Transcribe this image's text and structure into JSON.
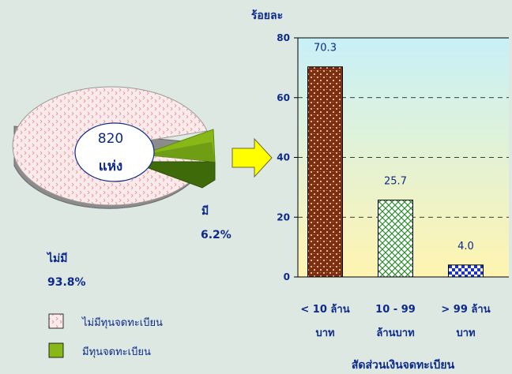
{
  "chart_data": [
    {
      "type": "pie",
      "center_text": [
        "820",
        "แห่ง"
      ],
      "slices": [
        {
          "label": "ไม่มี",
          "value": 93.8,
          "value_text": "93.8%",
          "color": "#f7e3e3"
        },
        {
          "label": "มี",
          "value": 6.2,
          "value_text": "6.2%",
          "color": "#88b818"
        }
      ],
      "legend": [
        {
          "label": "ไม่มีทุนจดทะเบียน",
          "swatch": "pink-dotted"
        },
        {
          "label": "มีทุนจดทะเบียน",
          "swatch": "green"
        }
      ],
      "legend_position": "bottom-left",
      "style": "3d-exploded"
    },
    {
      "type": "bar",
      "ylabel": "ร้อยละ",
      "title": "สัดส่วนเงินจดทะเบียน",
      "categories": [
        [
          "< 10 ล้าน",
          "บาท"
        ],
        [
          "10 - 99",
          "ล้านบาท"
        ],
        [
          "> 99 ล้าน",
          "บาท"
        ]
      ],
      "values": [
        70.3,
        25.7,
        4.0
      ],
      "value_labels": [
        "70.3",
        "25.7",
        "4.0"
      ],
      "ylim": [
        0,
        80
      ],
      "yticks": [
        0,
        20,
        40,
        60,
        80
      ],
      "grid": true,
      "bar_patterns": [
        "brown-dots",
        "green-crosshatch",
        "blue-checker"
      ]
    }
  ],
  "colors": {
    "background": "#dde8e2",
    "text_blue": "#0d2a8a",
    "pie_pink": "#f7e3e3",
    "pie_green": "#88b818",
    "arrow_yellow": "#ffff00",
    "plot_gradient_top": "#c8f0f8",
    "plot_gradient_bottom": "#fff4b0"
  }
}
